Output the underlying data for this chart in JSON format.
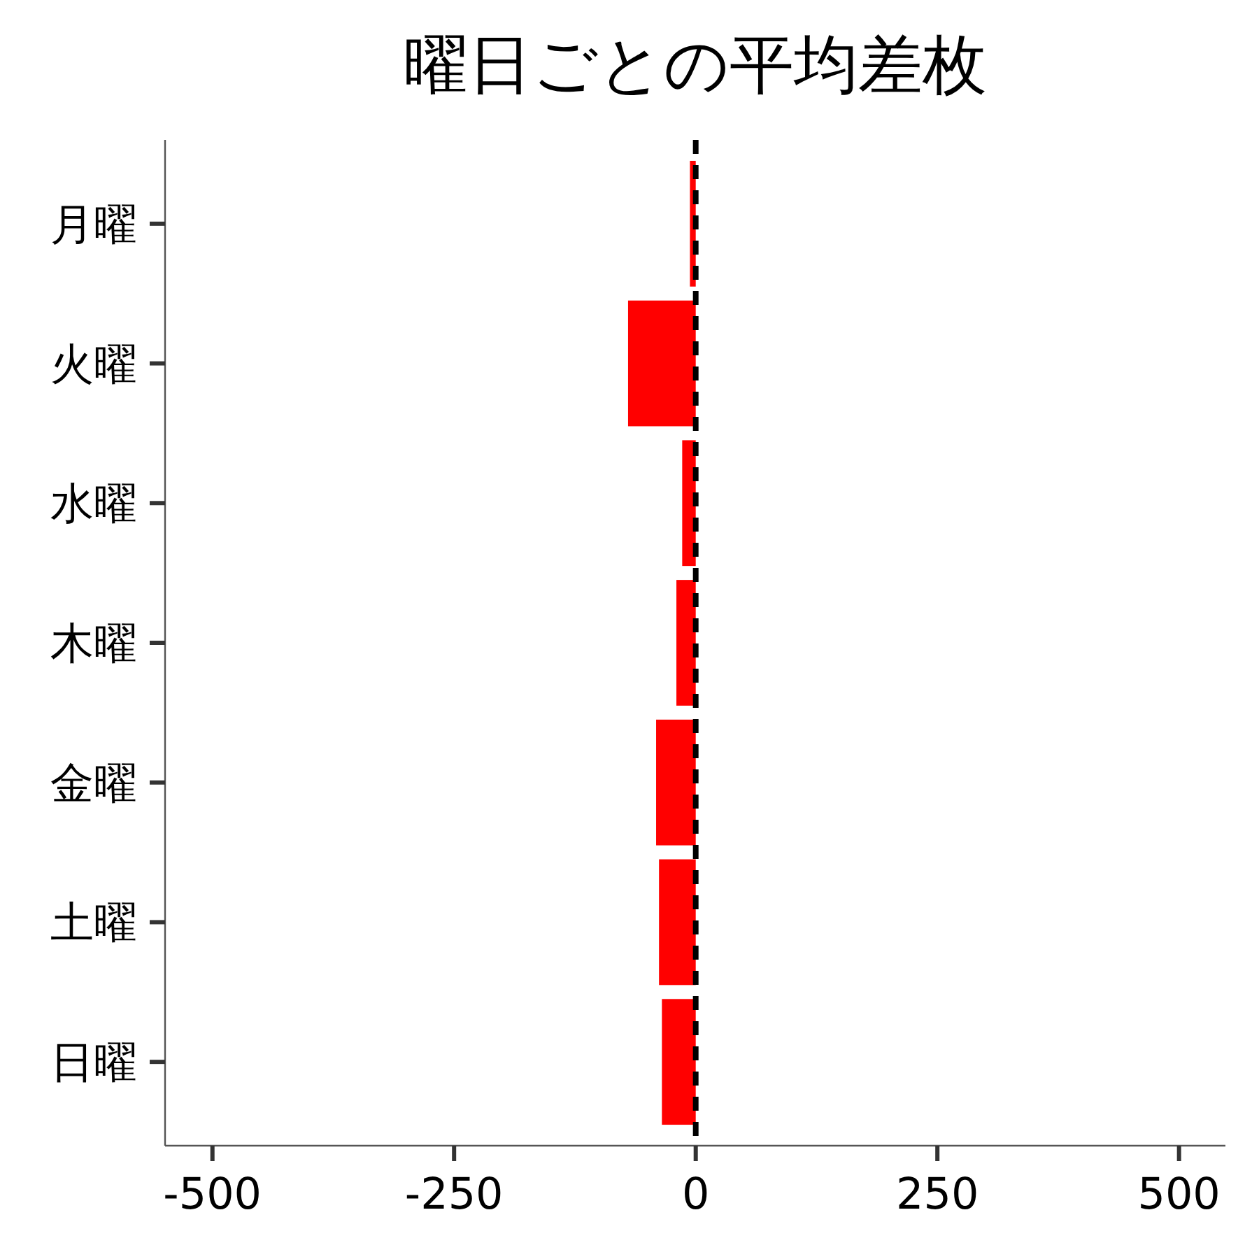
{
  "chart_data": {
    "type": "bar",
    "orientation": "horizontal",
    "title": "曜日ごとの平均差枚",
    "categories": [
      "月曜",
      "火曜",
      "水曜",
      "木曜",
      "金曜",
      "土曜",
      "日曜"
    ],
    "values": [
      -6,
      -70,
      -14,
      -20,
      -41,
      -38,
      -35
    ],
    "color": "#ff0000",
    "xlim": [
      -549,
      548
    ],
    "xticks": [
      -500,
      -250,
      0,
      250,
      500
    ],
    "ref_lines": [
      {
        "axis": "x",
        "value": 0,
        "color": "#000000",
        "line_style": "dashed"
      }
    ],
    "grid": false
  }
}
